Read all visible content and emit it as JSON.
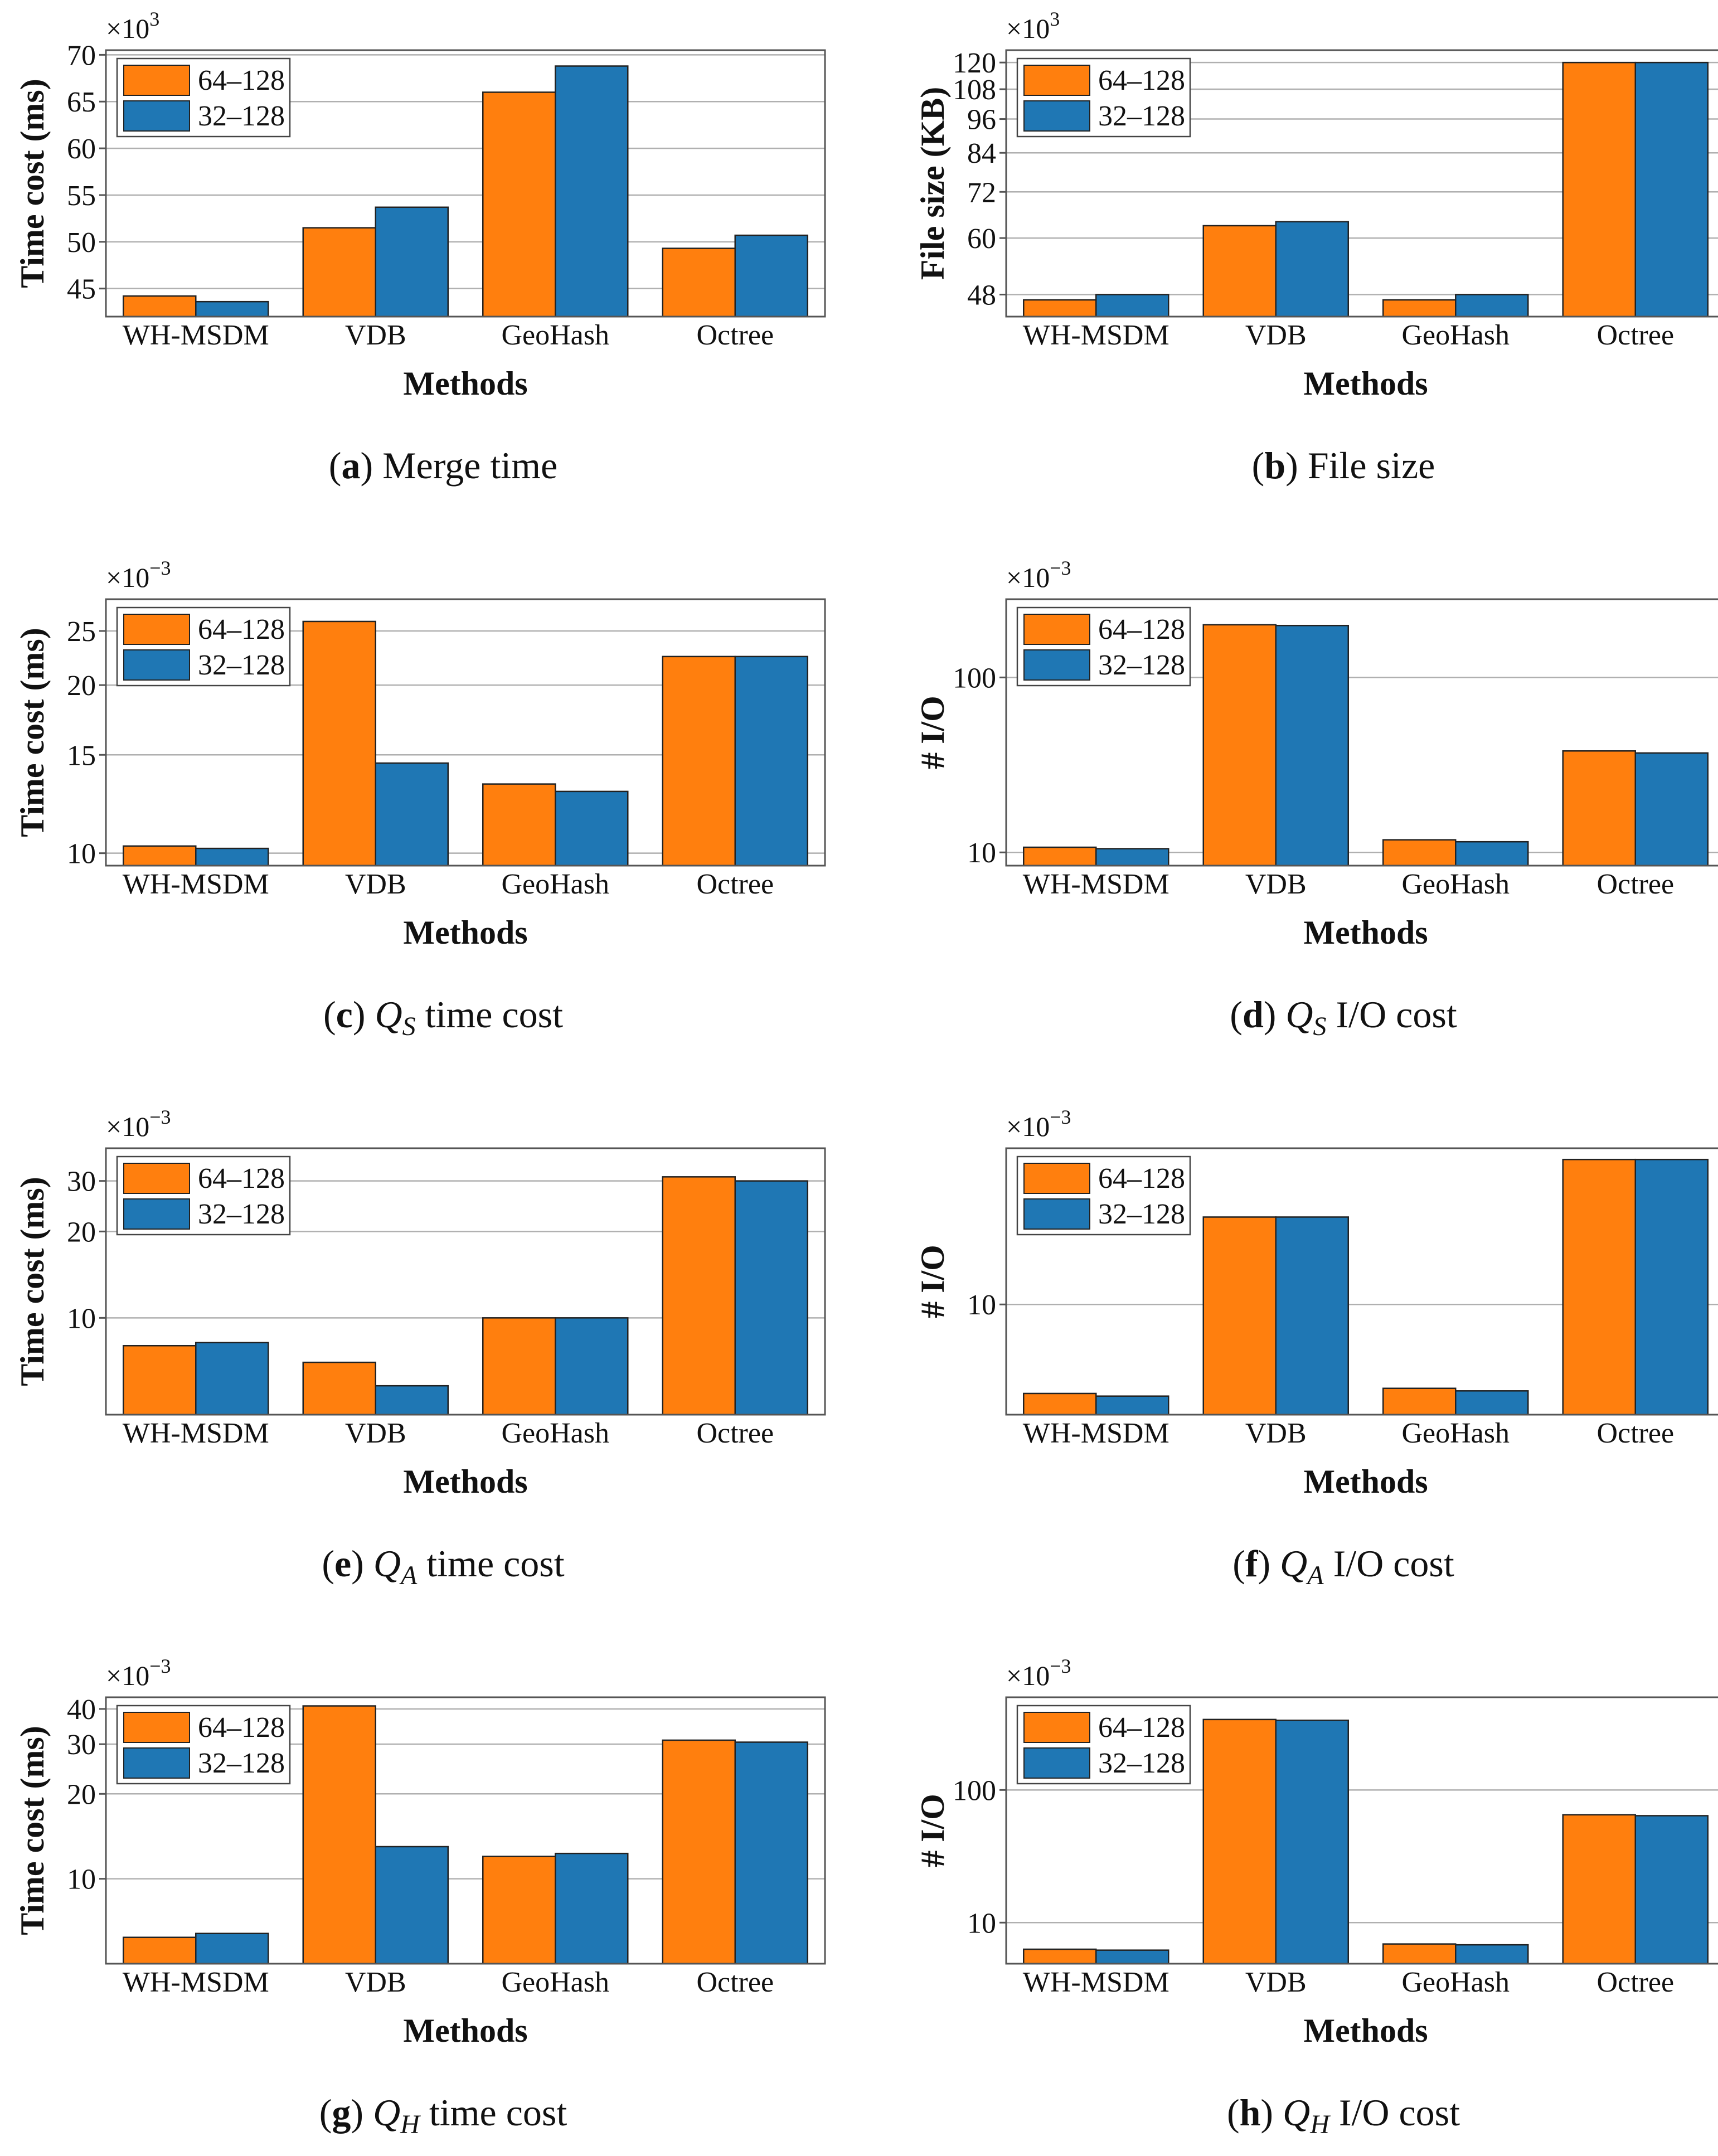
{
  "colors": {
    "series1": "#ff7f0e",
    "series2": "#1f77b4",
    "grid": "#b0b0b0",
    "frame": "#555555"
  },
  "chart_data": [
    {
      "type": "bar",
      "id": "a",
      "caption_letter": "a",
      "caption_text": "Merge time",
      "categories": [
        "WH-MSDM",
        "VDB",
        "GeoHash",
        "Octree"
      ],
      "series": [
        {
          "name": "64–128",
          "values": [
            44.2,
            51.5,
            66.0,
            49.3
          ]
        },
        {
          "name": "32–128",
          "values": [
            43.6,
            53.7,
            68.8,
            50.7
          ]
        }
      ],
      "xlabel": "Methods",
      "ylabel": "Time cost (ms)",
      "scale": "linear",
      "ylim": [
        42,
        70.5
      ],
      "yticks": [
        45,
        50,
        55,
        60,
        65,
        70
      ],
      "exponent": "3",
      "legend": "top-left",
      "grid": true
    },
    {
      "type": "bar",
      "id": "b",
      "caption_letter": "b",
      "caption_text": "File size",
      "categories": [
        "WH-MSDM",
        "VDB",
        "GeoHash",
        "Octree"
      ],
      "series": [
        {
          "name": "64–128",
          "values": [
            47,
            63,
            47,
            120
          ]
        },
        {
          "name": "32–128",
          "values": [
            48,
            64,
            48,
            120
          ]
        }
      ],
      "xlabel": "Methods",
      "ylabel": "File size (KB)",
      "scale": "log",
      "ylim": [
        44,
        126
      ],
      "yticks": [
        48,
        60,
        72,
        84,
        96,
        108,
        120
      ],
      "exponent": "3",
      "legend": "top-left",
      "grid": true
    },
    {
      "type": "bar",
      "id": "c",
      "caption_letter": "c",
      "caption_text": "time cost",
      "caption_q": "Q",
      "caption_sub": "S",
      "categories": [
        "WH-MSDM",
        "VDB",
        "GeoHash",
        "Octree"
      ],
      "series": [
        {
          "name": "64–128",
          "values": [
            10.3,
            26.0,
            13.3,
            22.5
          ]
        },
        {
          "name": "32–128",
          "values": [
            10.2,
            14.5,
            12.9,
            22.5
          ]
        }
      ],
      "xlabel": "Methods",
      "ylabel": "Time cost (ms)",
      "scale": "log",
      "ylim": [
        9.5,
        28.5
      ],
      "yticks": [
        10,
        15,
        20,
        25
      ],
      "exponent": "−3",
      "legend": "top-left",
      "grid": true
    },
    {
      "type": "bar",
      "id": "d",
      "caption_letter": "d",
      "caption_text": "I/O cost",
      "caption_q": "Q",
      "caption_sub": "S",
      "categories": [
        "WH-MSDM",
        "VDB",
        "GeoHash",
        "Octree"
      ],
      "series": [
        {
          "name": "64–128",
          "values": [
            10.7,
            200,
            11.8,
            38
          ]
        },
        {
          "name": "32–128",
          "values": [
            10.5,
            198,
            11.5,
            37
          ]
        }
      ],
      "xlabel": "Methods",
      "ylabel": "# I/O",
      "scale": "log",
      "ylim": [
        8.4,
        280
      ],
      "yticks": [
        10,
        100
      ],
      "exponent": "−3",
      "legend": "top-left",
      "grid": true
    },
    {
      "type": "bar",
      "id": "e",
      "caption_letter": "e",
      "caption_text": "time cost",
      "caption_q": "Q",
      "caption_sub": "A",
      "categories": [
        "WH-MSDM",
        "VDB",
        "GeoHash",
        "Octree"
      ],
      "series": [
        {
          "name": "64–128",
          "values": [
            8.0,
            7.0,
            10.0,
            31.0
          ]
        },
        {
          "name": "32–128",
          "values": [
            8.2,
            5.8,
            10.0,
            30.0
          ]
        }
      ],
      "xlabel": "Methods",
      "ylabel": "Time cost (ms)",
      "scale": "log",
      "ylim": [
        4.6,
        39
      ],
      "yticks": [
        10,
        20,
        30
      ],
      "exponent": "−3",
      "legend": "top-left",
      "grid": true
    },
    {
      "type": "bar",
      "id": "f",
      "caption_letter": "f",
      "caption_text": "I/O cost",
      "caption_q": "Q",
      "caption_sub": "A",
      "categories": [
        "WH-MSDM",
        "VDB",
        "GeoHash",
        "Octree"
      ],
      "series": [
        {
          "name": "64–128",
          "values": [
            5.2,
            19.0,
            5.4,
            29.0
          ]
        },
        {
          "name": "32–128",
          "values": [
            5.1,
            19.0,
            5.3,
            29.0
          ]
        }
      ],
      "xlabel": "Methods",
      "ylabel": "# I/O",
      "scale": "log",
      "ylim": [
        4.45,
        31.5
      ],
      "yticks": [
        10
      ],
      "exponent": "−3",
      "legend": "top-left",
      "grid": true
    },
    {
      "type": "bar",
      "id": "g",
      "caption_letter": "g",
      "caption_text": "time cost",
      "caption_q": "Q",
      "caption_sub": "H",
      "categories": [
        "WH-MSDM",
        "VDB",
        "GeoHash",
        "Octree"
      ],
      "series": [
        {
          "name": "64–128",
          "values": [
            6.2,
            41.0,
            12.0,
            31.0
          ]
        },
        {
          "name": "32–128",
          "values": [
            6.4,
            13.0,
            12.3,
            30.5
          ]
        }
      ],
      "xlabel": "Methods",
      "ylabel": "Time cost (ms)",
      "scale": "log",
      "ylim": [
        5.0,
        44
      ],
      "yticks": [
        10,
        20,
        30,
        40
      ],
      "exponent": "−3",
      "legend": "top-left",
      "grid": true
    },
    {
      "type": "bar",
      "id": "h",
      "caption_letter": "h",
      "caption_text": "I/O cost",
      "caption_q": "Q",
      "caption_sub": "H",
      "categories": [
        "WH-MSDM",
        "VDB",
        "GeoHash",
        "Octree"
      ],
      "series": [
        {
          "name": "64–128",
          "values": [
            6.3,
            340,
            6.9,
            65
          ]
        },
        {
          "name": "32–128",
          "values": [
            6.2,
            335,
            6.8,
            64
          ]
        }
      ],
      "xlabel": "Methods",
      "ylabel": "# I/O",
      "scale": "log",
      "ylim": [
        4.9,
        500
      ],
      "yticks": [
        10,
        100
      ],
      "exponent": "−3",
      "legend": "top-left",
      "grid": true
    }
  ]
}
